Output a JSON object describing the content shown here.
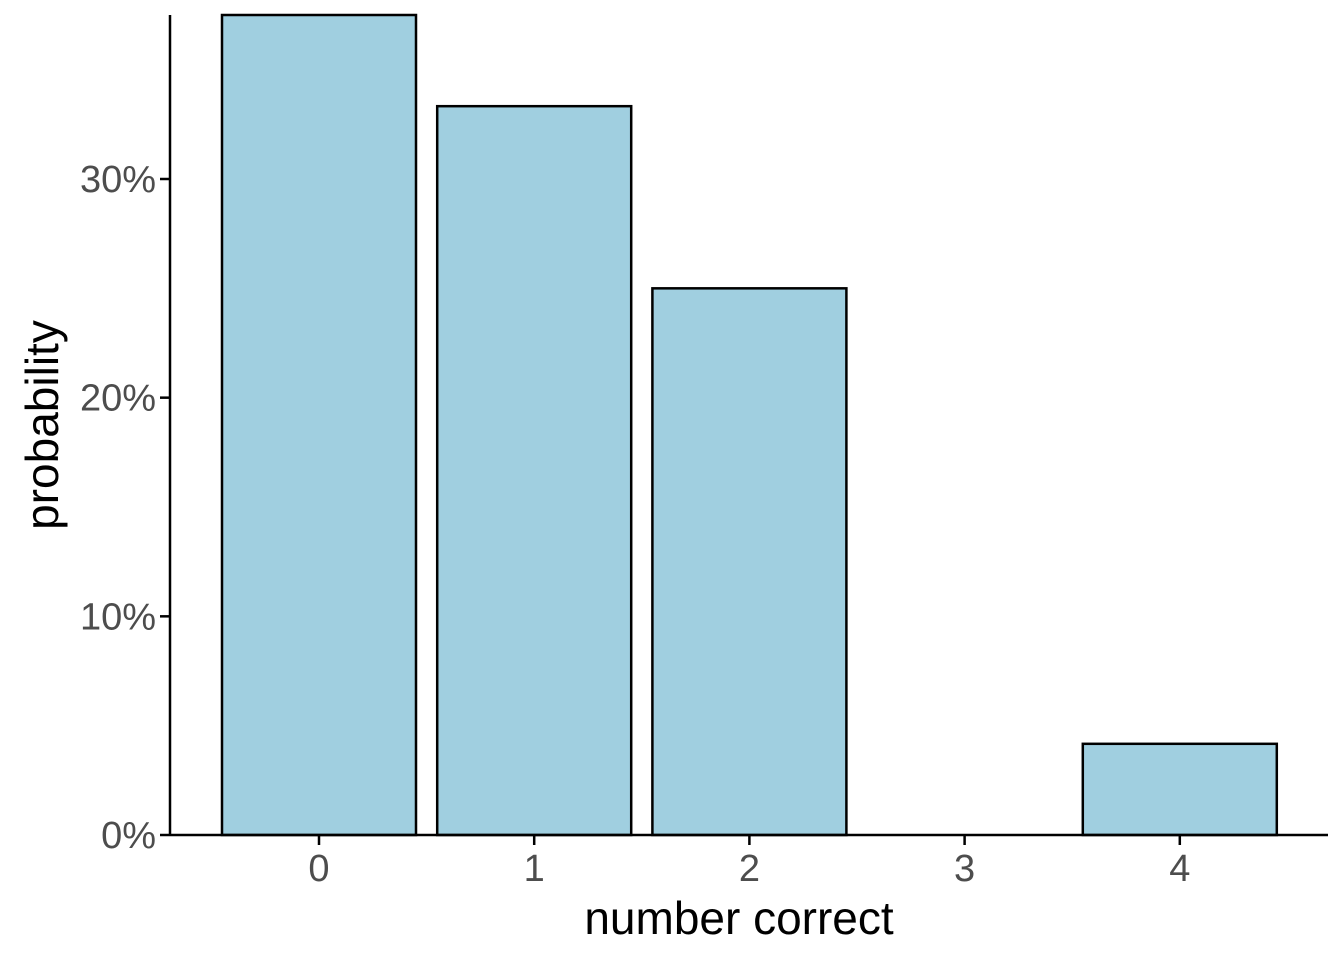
{
  "chart_data": {
    "type": "bar",
    "categories": [
      "0",
      "1",
      "2",
      "3",
      "4"
    ],
    "values": [
      37.5,
      33.33,
      25.0,
      0.0,
      4.17
    ],
    "xlabel": "number correct",
    "ylabel": "probability",
    "ylim": [
      0,
      37.5
    ],
    "y_ticks": [
      0,
      10,
      20,
      30
    ],
    "y_tick_labels": [
      "0%",
      "10%",
      "20%",
      "30%"
    ],
    "grid": false,
    "legend": "none",
    "colors": {
      "bar_fill": "#a0cfe0",
      "bar_stroke": "#000000",
      "axis": "#000000",
      "tick_label": "#4d4d4d"
    }
  }
}
